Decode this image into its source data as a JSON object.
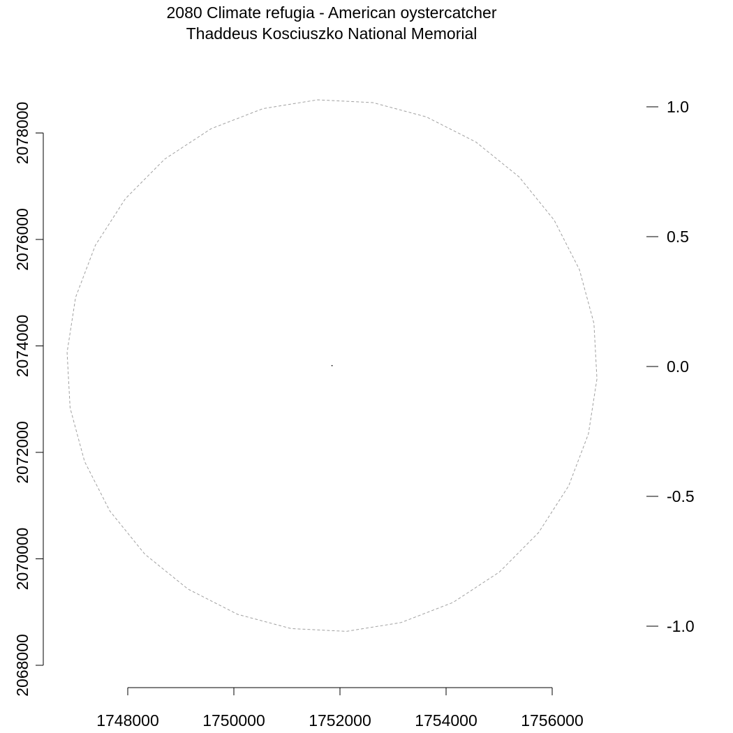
{
  "chart_data": {
    "type": "map",
    "title": "2080 Climate refugia - American oystercatcher",
    "subtitle": "Thaddeus Kosciuszko National Memorial",
    "xlabel": "",
    "ylabel": "",
    "x_axis": {
      "ticks": [
        1748000,
        1750000,
        1752000,
        1754000,
        1756000
      ],
      "tick_labels": [
        "1748000",
        "1750000",
        "1752000",
        "1754000",
        "1756000"
      ]
    },
    "y_axis": {
      "ticks": [
        2068000,
        2070000,
        2072000,
        2074000,
        2076000,
        2078000
      ],
      "tick_labels": [
        "2068000",
        "2070000",
        "2072000",
        "2074000",
        "2076000",
        "2078000"
      ]
    },
    "legend_axis": {
      "ticks": [
        1.0,
        0.5,
        0.0,
        -0.5,
        -1.0
      ],
      "tick_labels": [
        "1.0",
        "0.5",
        "0.0",
        "-0.5",
        "-1.0"
      ]
    },
    "site_point": {
      "x": 1751850,
      "y": 2073630
    },
    "buffer": {
      "center_x": 1751850,
      "center_y": 2073630,
      "radius": 5000
    },
    "grid": false,
    "colors": {
      "buffer_line": "#a0a0a0",
      "axis": "#000000",
      "point": "#000000"
    }
  }
}
